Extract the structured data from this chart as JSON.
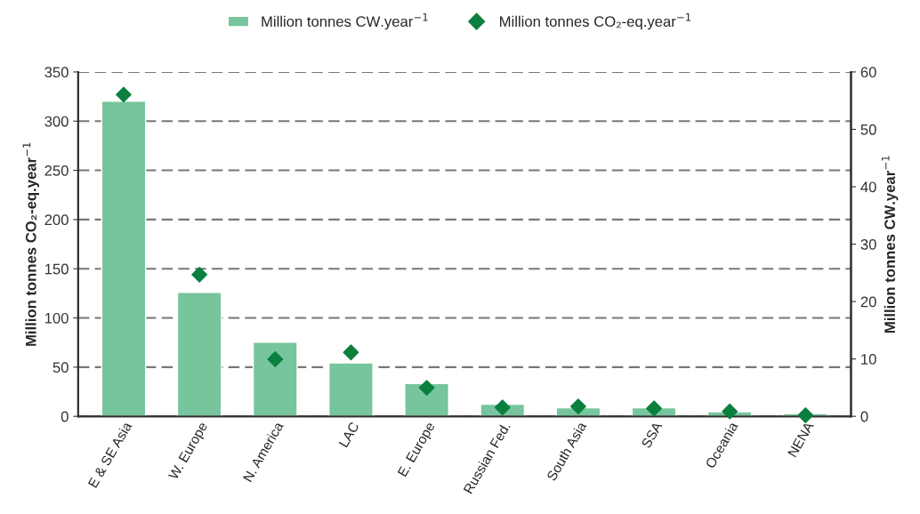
{
  "chart_data": {
    "type": "bar",
    "categories": [
      "E & SE Asia",
      "W. Europe",
      "N. America",
      "LAC",
      "E. Europe",
      "Russian Fed.",
      "South Asia",
      "SSA",
      "Oceania",
      "NENA"
    ],
    "series": [
      {
        "name": "Million tonnes CW.year$^{−1}$",
        "axis": "y2",
        "color": "#76c59c",
        "values": [
          54.9,
          21.6,
          12.9,
          9.3,
          5.7,
          2.1,
          1.5,
          1.5,
          0.8,
          0.5
        ]
      },
      {
        "name": "Million tonnes CO₂-eq.year$^{−1}$",
        "type": "scatter",
        "axis": "y",
        "marker": "diamond",
        "color": "#0b7f3e",
        "values": [
          327,
          144,
          58,
          65,
          29,
          9,
          10,
          8,
          5,
          1
        ]
      }
    ],
    "ylabel": "Million tonnes CO₂-eq.year$^{−1}$",
    "y2label": "Million tonnes CW.year$^{−1}$",
    "ylim": [
      0,
      350
    ],
    "yticks": [
      0,
      50,
      100,
      150,
      200,
      250,
      300,
      350
    ],
    "y2lim": [
      0,
      60
    ],
    "y2ticks": [
      0,
      10,
      20,
      30,
      40,
      50,
      60
    ],
    "grid": "y",
    "legend": "top"
  }
}
